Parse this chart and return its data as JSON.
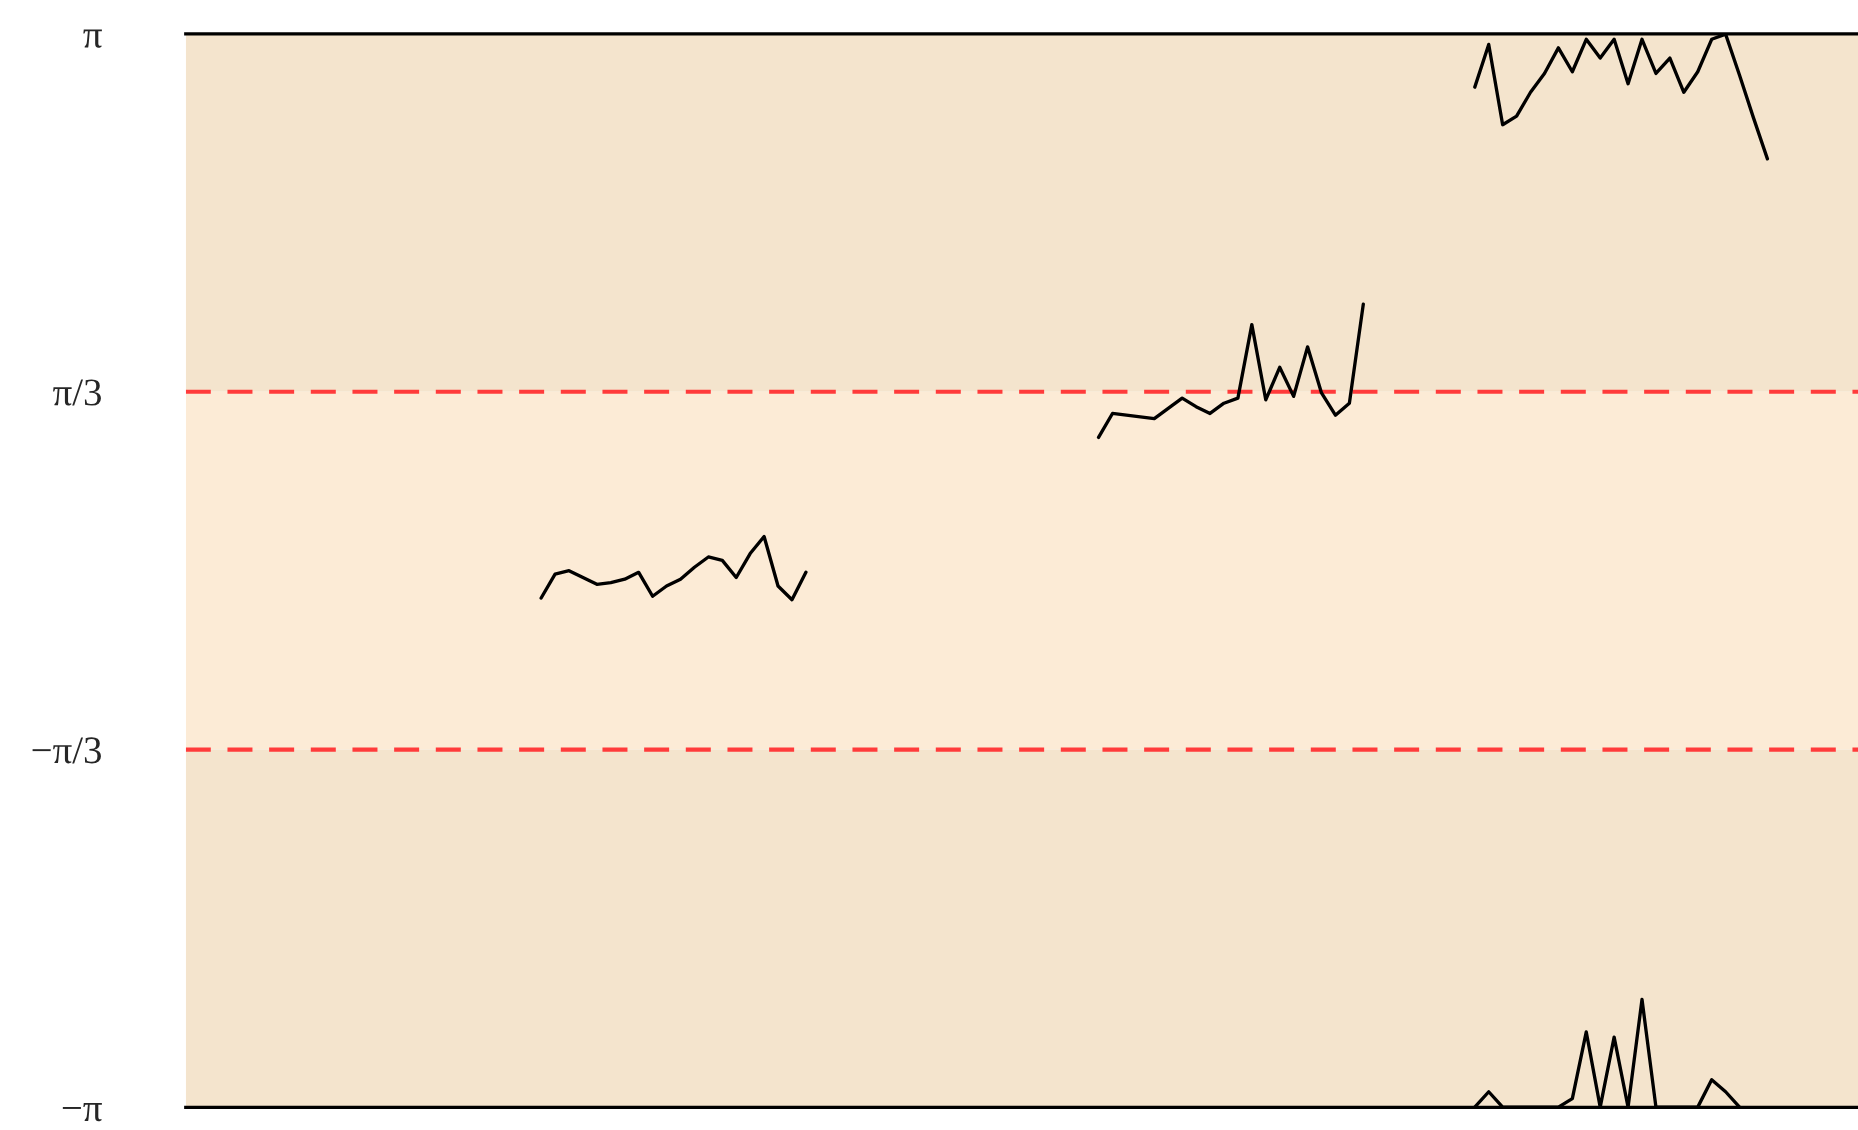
{
  "chart_data": {
    "type": "line",
    "categories": [
      null,
      null,
      null,
      null,
      null,
      null,
      null,
      null,
      null,
      null,
      null,
      null,
      null,
      null,
      null,
      null,
      null,
      null,
      null,
      null,
      null,
      null,
      null,
      null,
      null,
      null,
      null,
      null,
      null,
      null,
      null,
      null,
      null,
      null,
      null,
      null,
      null,
      null,
      null,
      null,
      null,
      null,
      null,
      null,
      null,
      null,
      null,
      null,
      null,
      null,
      null,
      null,
      null,
      null,
      null,
      null,
      null,
      null,
      null,
      null,
      null,
      null,
      null,
      null,
      null,
      null,
      null,
      null,
      null,
      null,
      null,
      null,
      null,
      null,
      null,
      null,
      null,
      null,
      null,
      null,
      null,
      null,
      null,
      null,
      null,
      null,
      null,
      null,
      null,
      null,
      null,
      null,
      null,
      null,
      null,
      null,
      null,
      null,
      null,
      null,
      null,
      null,
      null,
      null,
      null,
      null,
      null,
      null,
      null,
      null,
      null,
      null,
      null,
      null,
      null,
      null,
      null,
      null,
      null,
      null
    ],
    "ylim": [
      -3.1416,
      3.1416
    ],
    "yticks": [
      {
        "value": 3.1416,
        "label": "π"
      },
      {
        "value": 1.0472,
        "label": "π/3"
      },
      {
        "value": -1.0472,
        "label": "−π/3"
      },
      {
        "value": -3.1416,
        "label": "−π"
      }
    ],
    "tick_labels": "y",
    "grid": false,
    "line_style": "solid",
    "marker": "none",
    "bands": [
      {
        "axis": "y",
        "from": 1.0472,
        "to": 3.1416,
        "color": "#f4e4cd"
      },
      {
        "axis": "y",
        "from": -1.0472,
        "to": 1.0472,
        "color": "#fcebd6"
      },
      {
        "axis": "y",
        "from": -3.1416,
        "to": -1.0472,
        "color": "#f4e4cd"
      }
    ],
    "ref_lines": [
      {
        "axis": "y",
        "value": 1.0472,
        "color": "#ff3b3b",
        "line_style": "dashed"
      },
      {
        "axis": "y",
        "value": -1.0472,
        "color": "#ff3b3b",
        "line_style": "dashed"
      }
    ],
    "series": [
      {
        "color": "#000000",
        "values": [
          null,
          null,
          null,
          null,
          null,
          null,
          null,
          null,
          null,
          null,
          null,
          null,
          null,
          null,
          null,
          null,
          null,
          null,
          null,
          null,
          null,
          null,
          null,
          null,
          null,
          -0.16,
          -0.02,
          0.0,
          -0.04,
          -0.08,
          -0.07,
          -0.05,
          -0.01,
          -0.15,
          -0.09,
          -0.05,
          0.02,
          0.08,
          0.06,
          -0.04,
          0.1,
          0.2,
          -0.09,
          -0.17,
          -0.01,
          null,
          null,
          null,
          null,
          null,
          null,
          null,
          null,
          null,
          null,
          null,
          null,
          null,
          null,
          null,
          null,
          null,
          null,
          null,
          null,
          null,
          null,
          null,
          null,
          null,
          null,
          null,
          null,
          null,
          null,
          null,
          null,
          null,
          null,
          null,
          null,
          null,
          null,
          null,
          null,
          null,
          null,
          null,
          null,
          null,
          null,
          null,
          null,
          null,
          null,
          null,
          null,
          null,
          null,
          null,
          null,
          null,
          null,
          null,
          null,
          null,
          null,
          null,
          null,
          null,
          null,
          null,
          null,
          null,
          null,
          null,
          null,
          null,
          null,
          null
        ]
      },
      {
        "color": "#000000",
        "values": [
          null,
          null,
          null,
          null,
          null,
          null,
          null,
          null,
          null,
          null,
          null,
          null,
          null,
          null,
          null,
          null,
          null,
          null,
          null,
          null,
          null,
          null,
          null,
          null,
          null,
          null,
          null,
          null,
          null,
          null,
          null,
          null,
          null,
          null,
          null,
          null,
          null,
          null,
          null,
          null,
          null,
          null,
          null,
          null,
          null,
          null,
          null,
          null,
          null,
          null,
          null,
          null,
          null,
          null,
          null,
          null,
          null,
          null,
          null,
          null,
          null,
          null,
          null,
          null,
          null,
          0.78,
          0.92,
          0.91,
          0.9,
          0.89,
          0.95,
          1.01,
          0.96,
          0.92,
          0.98,
          1.01,
          1.44,
          1.0,
          1.19,
          1.02,
          1.31,
          1.04,
          0.91,
          0.98,
          1.56,
          null,
          null,
          null,
          null,
          null,
          null,
          null,
          null,
          null,
          null,
          null,
          null,
          null,
          null,
          null,
          null,
          null,
          null,
          null,
          null,
          null,
          null,
          null,
          null,
          null,
          null,
          null,
          null,
          null,
          null,
          null,
          null,
          null,
          null,
          null
        ]
      },
      {
        "color": "#000000",
        "values": [
          null,
          null,
          null,
          null,
          null,
          null,
          null,
          null,
          null,
          null,
          null,
          null,
          null,
          null,
          null,
          null,
          null,
          null,
          null,
          null,
          null,
          null,
          null,
          null,
          null,
          null,
          null,
          null,
          null,
          null,
          null,
          null,
          null,
          null,
          null,
          null,
          null,
          null,
          null,
          null,
          null,
          null,
          null,
          null,
          null,
          null,
          null,
          null,
          null,
          null,
          null,
          null,
          null,
          null,
          null,
          null,
          null,
          null,
          null,
          null,
          null,
          null,
          null,
          null,
          null,
          null,
          null,
          null,
          null,
          null,
          null,
          null,
          null,
          null,
          null,
          null,
          null,
          null,
          null,
          null,
          null,
          null,
          null,
          null,
          null,
          null,
          null,
          null,
          null,
          null,
          null,
          null,
          2.83,
          3.08,
          2.61,
          2.66,
          2.8,
          2.91,
          3.06,
          2.92,
          3.11,
          3.0,
          3.11,
          2.85,
          3.11,
          2.91,
          3.0,
          2.8,
          2.92,
          3.11,
          3.14,
          2.9,
          2.65,
          2.41,
          null,
          null,
          null,
          null,
          null,
          null
        ]
      },
      {
        "color": "#000000",
        "values": [
          null,
          null,
          null,
          null,
          null,
          null,
          null,
          null,
          null,
          null,
          null,
          null,
          null,
          null,
          null,
          null,
          null,
          null,
          null,
          null,
          null,
          null,
          null,
          null,
          null,
          null,
          null,
          null,
          null,
          null,
          null,
          null,
          null,
          null,
          null,
          null,
          null,
          null,
          null,
          null,
          null,
          null,
          null,
          null,
          null,
          null,
          null,
          null,
          null,
          null,
          null,
          null,
          null,
          null,
          null,
          null,
          null,
          null,
          null,
          null,
          null,
          null,
          null,
          null,
          null,
          null,
          null,
          null,
          null,
          null,
          null,
          null,
          null,
          null,
          null,
          null,
          null,
          null,
          null,
          null,
          null,
          null,
          null,
          null,
          null,
          null,
          null,
          null,
          null,
          null,
          null,
          null,
          -3.14,
          -3.05,
          -3.14,
          -3.14,
          -3.14,
          -3.14,
          -3.14,
          -3.09,
          -2.7,
          -3.14,
          -2.73,
          -3.14,
          -2.51,
          -3.14,
          -3.14,
          -3.14,
          -3.14,
          -2.98,
          -3.05,
          -3.14,
          null,
          null,
          null,
          null,
          null,
          null,
          null,
          null
        ]
      }
    ]
  }
}
